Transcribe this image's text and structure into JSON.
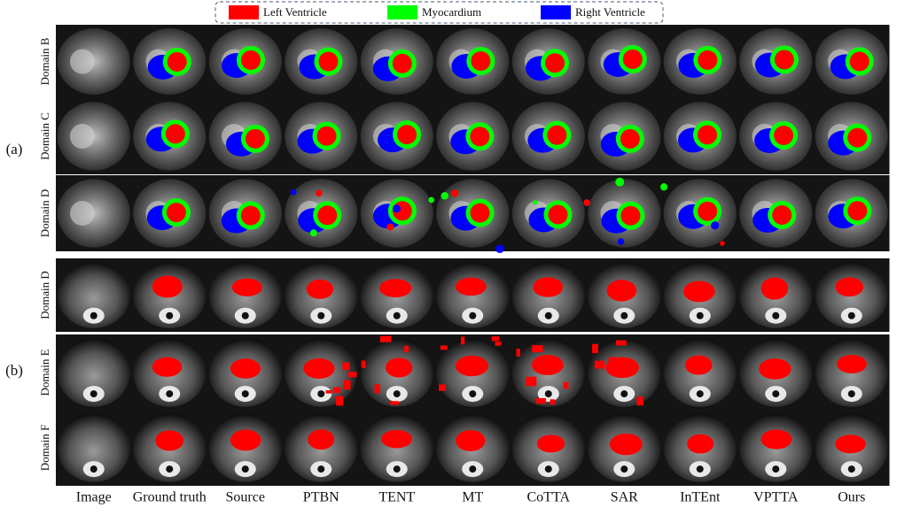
{
  "legend": {
    "items": [
      {
        "label": "Left Ventricle",
        "color": "#ff0000"
      },
      {
        "label": "Myocardium",
        "color": "#00ff00"
      },
      {
        "label": "Right Ventricle",
        "color": "#0000ff"
      }
    ]
  },
  "sections": [
    {
      "label": "(a)",
      "rows": [
        "Domain B",
        "Domain C",
        "Domain D"
      ]
    },
    {
      "label": "(b)",
      "rows": [
        "Domain D",
        "Domain E",
        "Domain F"
      ]
    }
  ],
  "columns": [
    "Image",
    "Ground truth",
    "Source",
    "PTBN",
    "TENT",
    "MT",
    "CoTTA",
    "SAR",
    "InTEnt",
    "VPTTA",
    "Ours"
  ]
}
